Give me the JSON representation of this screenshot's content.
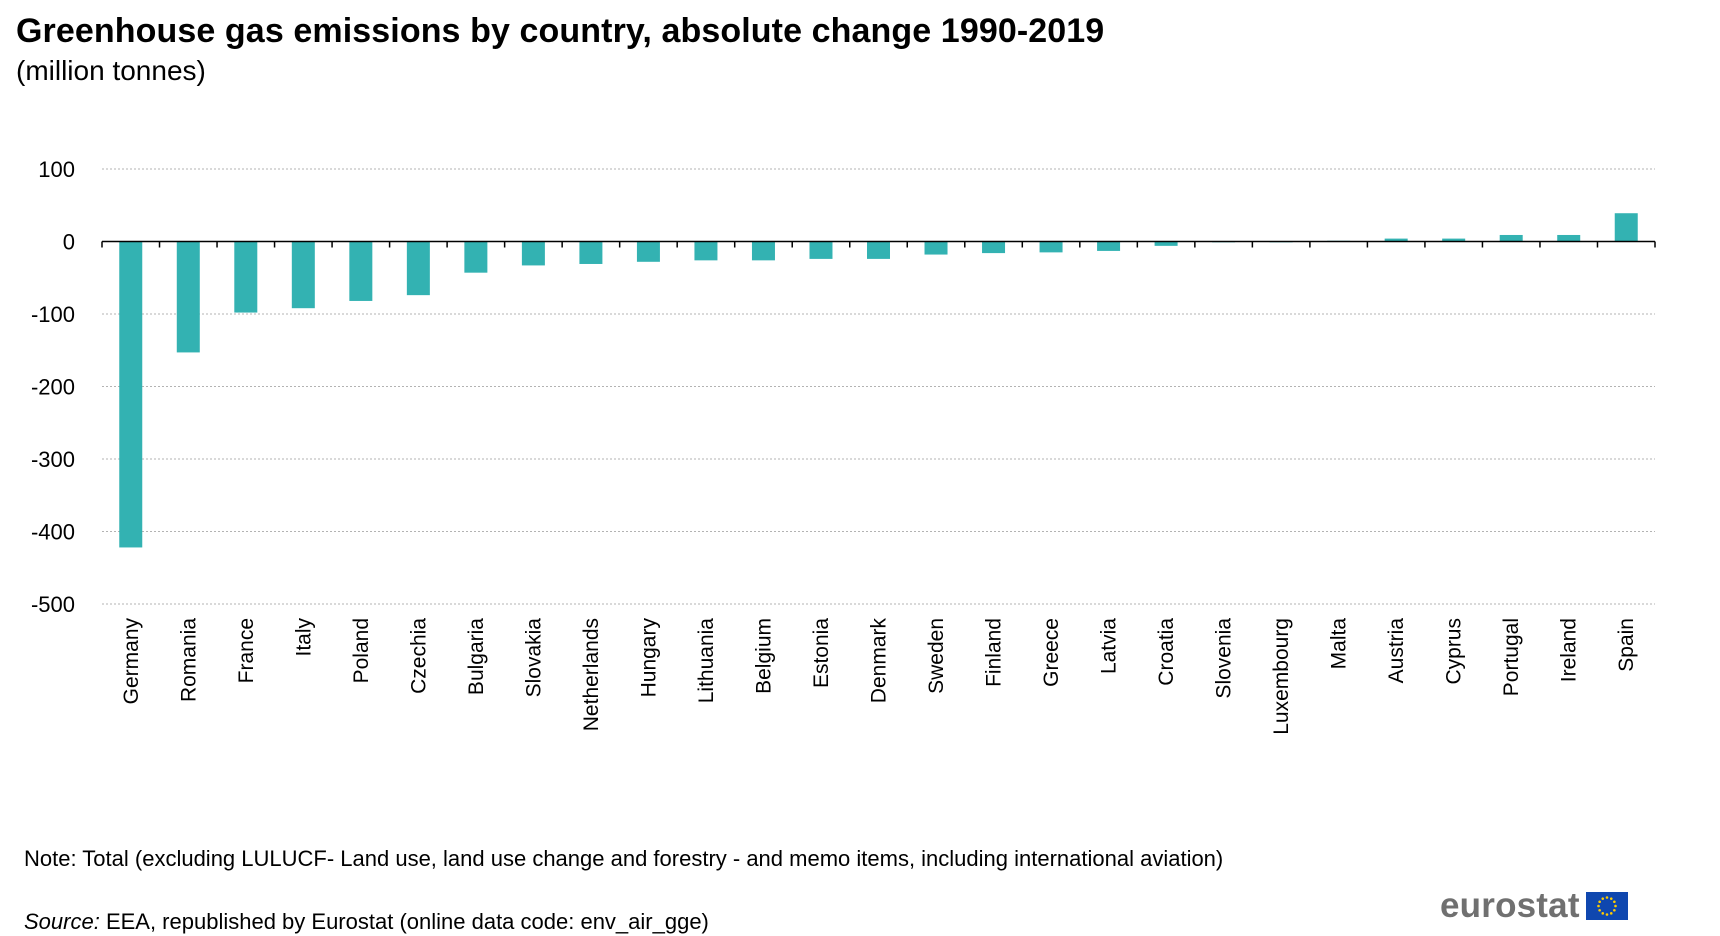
{
  "chart_data": {
    "type": "bar",
    "title": "Greenhouse gas emissions by country, absolute change 1990-2019",
    "subtitle": "(million tonnes)",
    "xlabel": "",
    "ylabel": "",
    "ylim": [
      -500,
      100
    ],
    "yticks": [
      100,
      0,
      -100,
      -200,
      -300,
      -400,
      -500
    ],
    "grid": true,
    "legend": "none",
    "bar_color": "#33b2b2",
    "categories": [
      "Germany",
      "Romania",
      "France",
      "Italy",
      "Poland",
      "Czechia",
      "Bulgaria",
      "Slovakia",
      "Netherlands",
      "Hungary",
      "Lithuania",
      "Belgium",
      "Estonia",
      "Denmark",
      "Sweden",
      "Finland",
      "Greece",
      "Latvia",
      "Croatia",
      "Slovenia",
      "Luxembourg",
      "Malta",
      "Austria",
      "Cyprus",
      "Portugal",
      "Ireland",
      "Spain"
    ],
    "values": [
      -422,
      -153,
      -98,
      -92,
      -82,
      -74,
      -43,
      -33,
      -31,
      -28,
      -26,
      -26,
      -24,
      -24,
      -18,
      -16,
      -15,
      -13,
      -6,
      0,
      -1,
      1,
      4,
      4,
      9,
      9,
      39
    ]
  },
  "note": "Note: Total (excluding LULUCF- Land use, land use change and forestry - and memo items, including international aviation)",
  "source_label": "Source:",
  "source_text": " EEA, republished by Eurostat (online data code: env_air_gge)",
  "logo_text": "eurostat",
  "colors": {
    "flag_blue": "#0f47af",
    "flag_star": "#ffcc00",
    "gridline": "#b3b3b3"
  }
}
